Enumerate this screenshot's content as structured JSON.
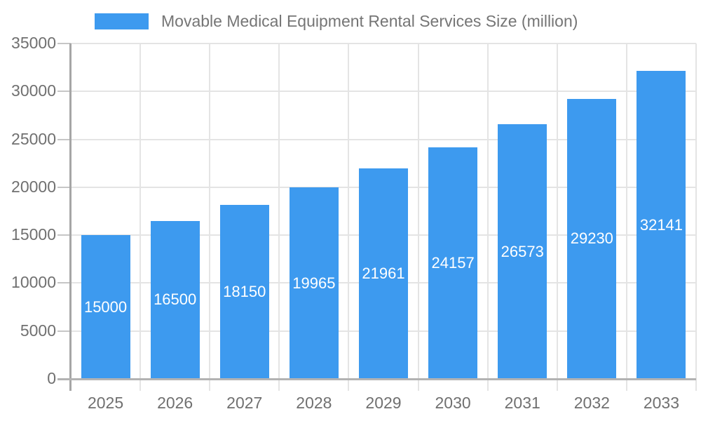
{
  "legend": {
    "label": "Movable Medical Equipment Rental Services Size (million)"
  },
  "chart_data": {
    "type": "bar",
    "title": "Movable Medical Equipment Rental Services Size (million)",
    "series_name": "Movable Medical Equipment Rental Services Size (million)",
    "categories": [
      "2025",
      "2026",
      "2027",
      "2028",
      "2029",
      "2030",
      "2031",
      "2032",
      "2033"
    ],
    "values": [
      15000,
      16500,
      18150,
      19965,
      21961,
      24157,
      26573,
      29230,
      32141
    ],
    "bar_labels": [
      "15000",
      "16500",
      "18150",
      "19965",
      "21961",
      "24157",
      "26573",
      "29230",
      "32141"
    ],
    "xlabel": "",
    "ylabel": "",
    "ylim": [
      0,
      35000
    ],
    "ytick_interval": 5000,
    "yticks": [
      0,
      5000,
      10000,
      15000,
      20000,
      25000,
      30000,
      35000
    ],
    "grid": true,
    "legend_position": "top",
    "colors": {
      "bar": "#3D9AEF",
      "bar_label_text": "#ffffff",
      "axis_text": "#707070",
      "legend_text": "#757575",
      "gridline": "#E4E4E4",
      "tick": "#C6C6C6",
      "axis_line_y": "#A6A6A6",
      "axis_line_x": "#B3B3B3",
      "background": "#ffffff"
    }
  }
}
